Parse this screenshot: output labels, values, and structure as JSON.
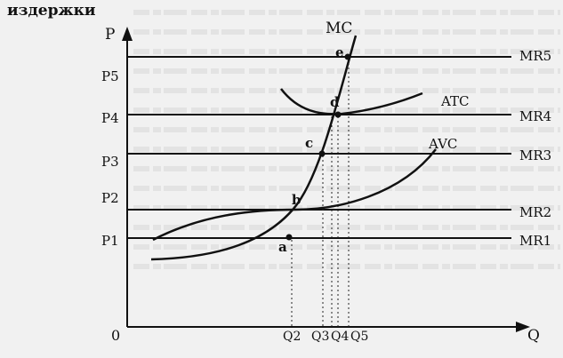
{
  "figure": {
    "y_axis_caption": "издержки",
    "y_axis_symbol": "P",
    "x_axis_symbol": "Q",
    "origin": "0",
    "price_levels": [
      "P1",
      "P2",
      "P3",
      "P4",
      "P5"
    ],
    "quantity_marks": [
      "Q2",
      "Q3",
      "Q4",
      "Q5"
    ],
    "revenue_lines": [
      "MR1",
      "MR2",
      "MR3",
      "MR4",
      "MR5"
    ],
    "cost_curves": {
      "mc": "MC",
      "atc": "ATC",
      "avc": "AVC"
    },
    "points": [
      "a",
      "b",
      "c",
      "d",
      "e"
    ]
  }
}
